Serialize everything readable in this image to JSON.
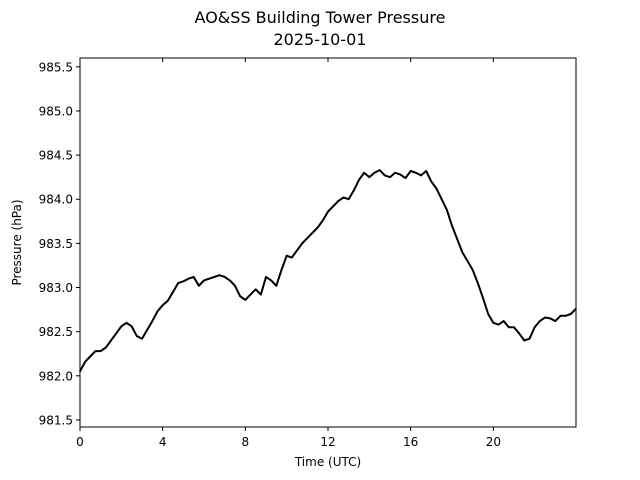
{
  "chart_data": {
    "type": "line",
    "title": "AO&SS Building Tower Pressure",
    "subtitle": "2025-10-01",
    "xlabel": "Time (UTC)",
    "ylabel": "Pressure (hPa)",
    "xlim": [
      0,
      24
    ],
    "ylim": [
      981.42,
      985.6
    ],
    "xticks": [
      0,
      4,
      8,
      12,
      16,
      20
    ],
    "xtick_labels": [
      "0",
      "4",
      "8",
      "12",
      "16",
      "20"
    ],
    "yticks": [
      981.5,
      982.0,
      982.5,
      983.0,
      983.5,
      984.0,
      984.5,
      985.0,
      985.5
    ],
    "ytick_labels": [
      "981.5",
      "982.0",
      "982.5",
      "983.0",
      "983.5",
      "984.0",
      "984.5",
      "985.0",
      "985.5"
    ],
    "grid": false,
    "line_color": "#000000",
    "series": [
      {
        "x": [
          0,
          0.25,
          0.5,
          0.75,
          1.0,
          1.25,
          1.5,
          1.75,
          2.0,
          2.25,
          2.5,
          2.75,
          3.0,
          3.25,
          3.5,
          3.75,
          4.0,
          4.25,
          4.5,
          4.75,
          5.0,
          5.25,
          5.5,
          5.75,
          6.0,
          6.25,
          6.5,
          6.75,
          7.0,
          7.25,
          7.5,
          7.75,
          8.0,
          8.25,
          8.5,
          8.75,
          9.0,
          9.25,
          9.5,
          9.75,
          10.0,
          10.25,
          10.5,
          10.75,
          11.0,
          11.25,
          11.5,
          11.75,
          12.0,
          12.25,
          12.5,
          12.75,
          13.0,
          13.25,
          13.5,
          13.75,
          14.0,
          14.25,
          14.5,
          14.75,
          15.0,
          15.25,
          15.5,
          15.75,
          16.0,
          16.25,
          16.5,
          16.75,
          17.0,
          17.25,
          17.5,
          17.75,
          18.0,
          18.25,
          18.5,
          18.75,
          19.0,
          19.25,
          19.5,
          19.75,
          20.0,
          20.25,
          20.5,
          20.75,
          21.0,
          21.25,
          21.5,
          21.75,
          22.0,
          22.25,
          22.5,
          22.75,
          23.0,
          23.25,
          23.5,
          23.75,
          24.0
        ],
        "y": [
          982.05,
          982.16,
          982.22,
          982.28,
          982.28,
          982.32,
          982.4,
          982.48,
          982.56,
          982.6,
          982.56,
          982.45,
          982.42,
          982.52,
          982.62,
          982.73,
          982.8,
          982.85,
          982.95,
          983.05,
          983.07,
          983.1,
          983.12,
          983.02,
          983.08,
          983.1,
          983.12,
          983.14,
          983.12,
          983.08,
          983.02,
          982.9,
          982.86,
          982.92,
          982.98,
          982.92,
          983.12,
          983.08,
          983.02,
          983.2,
          983.36,
          983.34,
          983.42,
          983.5,
          983.56,
          983.62,
          983.68,
          983.76,
          983.86,
          983.92,
          983.98,
          984.02,
          984.0,
          984.1,
          984.22,
          984.3,
          984.25,
          984.3,
          984.33,
          984.27,
          984.25,
          984.3,
          984.28,
          984.24,
          984.32,
          984.3,
          984.27,
          984.32,
          984.2,
          984.12,
          984.0,
          983.88,
          983.7,
          983.55,
          983.4,
          983.3,
          983.2,
          983.05,
          982.88,
          982.7,
          982.6,
          982.58,
          982.62,
          982.55,
          982.55,
          982.48,
          982.4,
          982.42,
          982.55,
          982.62,
          982.66,
          982.65,
          982.62,
          982.68,
          982.68,
          982.7,
          982.76
        ]
      }
    ]
  }
}
